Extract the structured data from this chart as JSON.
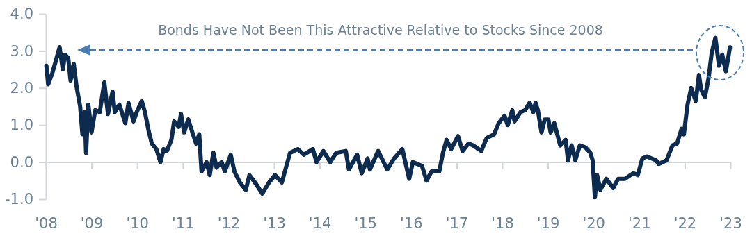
{
  "chart_data": {
    "type": "line",
    "annotations": [
      "Bonds Have Not Been This Attractive Relative to Stocks Since 2008"
    ],
    "x": [
      2008.01,
      2008.05,
      2008.14,
      2008.21,
      2008.3,
      2008.37,
      2008.42,
      2008.49,
      2008.54,
      2008.61,
      2008.67,
      2008.75,
      2008.8,
      2008.85,
      2008.88,
      2008.93,
      2009.0,
      2009.08,
      2009.18,
      2009.28,
      2009.36,
      2009.46,
      2009.51,
      2009.61,
      2009.74,
      2009.81,
      2009.92,
      2009.99,
      2010.1,
      2010.17,
      2010.25,
      2010.32,
      2010.42,
      2010.51,
      2010.58,
      2010.65,
      2010.75,
      2010.81,
      2010.91,
      2010.96,
      2011.03,
      2011.12,
      2011.21,
      2011.29,
      2011.36,
      2011.41,
      2011.52,
      2011.59,
      2011.67,
      2011.74,
      2011.85,
      2011.92,
      2012.05,
      2012.13,
      2012.25,
      2012.38,
      2012.46,
      2012.61,
      2012.74,
      2012.89,
      2013.02,
      2013.17,
      2013.27,
      2013.35,
      2013.52,
      2013.65,
      2013.85,
      2013.93,
      2014.08,
      2014.23,
      2014.36,
      2014.57,
      2014.64,
      2014.82,
      2014.92,
      2015.05,
      2015.1,
      2015.28,
      2015.48,
      2015.63,
      2015.81,
      2015.96,
      2016.04,
      2016.24,
      2016.34,
      2016.45,
      2016.62,
      2016.7,
      2016.78,
      2016.88,
      2017.03,
      2017.13,
      2017.26,
      2017.36,
      2017.54,
      2017.66,
      2017.82,
      2017.92,
      2018.05,
      2018.12,
      2018.22,
      2018.27,
      2018.4,
      2018.5,
      2018.6,
      2018.68,
      2018.73,
      2018.78,
      2018.86,
      2018.93,
      2019.01,
      2019.06,
      2019.14,
      2019.27,
      2019.39,
      2019.44,
      2019.52,
      2019.6,
      2019.7,
      2019.82,
      2019.93,
      2019.98,
      2020.03,
      2020.08,
      2020.15,
      2020.28,
      2020.43,
      2020.54,
      2020.69,
      2020.87,
      2020.97,
      2021.07,
      2021.17,
      2021.37,
      2021.43,
      2021.6,
      2021.73,
      2021.83,
      2021.93,
      2021.98,
      2022.06,
      2022.14,
      2022.24,
      2022.31,
      2022.36,
      2022.44,
      2022.52,
      2022.59,
      2022.67,
      2022.75,
      2022.82,
      2022.9,
      2022.95,
      2022.99
    ],
    "series": [
      {
        "color": "#0d2b4e",
        "values": [
          2.6,
          2.1,
          2.4,
          2.7,
          3.1,
          2.5,
          2.9,
          2.8,
          2.2,
          2.65,
          2.05,
          1.5,
          0.75,
          1.35,
          0.25,
          1.55,
          0.8,
          1.4,
          1.35,
          2.15,
          1.3,
          1.9,
          1.35,
          1.55,
          1.05,
          1.6,
          1.1,
          1.35,
          1.65,
          1.35,
          0.85,
          0.5,
          0.35,
          0.0,
          0.35,
          0.3,
          0.6,
          1.1,
          0.95,
          1.3,
          0.8,
          1.15,
          0.8,
          0.5,
          0.75,
          -0.25,
          0.0,
          -0.35,
          0.25,
          -0.15,
          0.0,
          -0.25,
          0.2,
          -0.25,
          -0.55,
          -0.75,
          -0.35,
          -0.6,
          -0.85,
          -0.55,
          -0.35,
          -0.55,
          -0.1,
          0.25,
          0.35,
          0.2,
          0.35,
          0.0,
          0.3,
          0.0,
          0.25,
          0.3,
          -0.2,
          0.2,
          -0.3,
          0.1,
          -0.2,
          0.3,
          -0.2,
          0.1,
          0.35,
          -0.45,
          0.0,
          -0.1,
          -0.5,
          -0.25,
          -0.25,
          0.25,
          0.6,
          0.35,
          0.7,
          0.3,
          0.5,
          0.45,
          0.3,
          0.65,
          0.75,
          1.05,
          1.25,
          1.0,
          1.4,
          1.1,
          1.35,
          1.4,
          1.6,
          1.35,
          1.6,
          1.4,
          0.8,
          1.15,
          1.15,
          0.8,
          1.05,
          0.45,
          0.6,
          0.05,
          0.45,
          0.05,
          0.45,
          0.4,
          0.25,
          0.05,
          -0.95,
          -0.35,
          -0.75,
          -0.45,
          -0.7,
          -0.45,
          -0.45,
          -0.3,
          -0.35,
          0.1,
          0.15,
          0.05,
          -0.05,
          0.05,
          0.45,
          0.5,
          0.9,
          0.75,
          1.55,
          2.0,
          1.65,
          2.35,
          1.95,
          1.75,
          2.25,
          2.95,
          3.35,
          2.6,
          2.9,
          2.45,
          2.8,
          3.1
        ]
      }
    ],
    "xlim": [
      2008,
      2023
    ],
    "xticks": [
      {
        "value": 2008,
        "label": "'08"
      },
      {
        "value": 2009,
        "label": "'09"
      },
      {
        "value": 2010,
        "label": "'10"
      },
      {
        "value": 2011,
        "label": "'11"
      },
      {
        "value": 2012,
        "label": "'12"
      },
      {
        "value": 2013,
        "label": "'13"
      },
      {
        "value": 2014,
        "label": "'14"
      },
      {
        "value": 2015,
        "label": "'15"
      },
      {
        "value": 2016,
        "label": "'16"
      },
      {
        "value": 2017,
        "label": "'17"
      },
      {
        "value": 2018,
        "label": "'18"
      },
      {
        "value": 2019,
        "label": "'19"
      },
      {
        "value": 2020,
        "label": "'20"
      },
      {
        "value": 2021,
        "label": "'21"
      },
      {
        "value": 2022,
        "label": "'22"
      },
      {
        "value": 2023,
        "label": "'23"
      }
    ],
    "ylim": [
      -1,
      4
    ],
    "yticks": [
      {
        "value": -1,
        "label": "-1.0"
      },
      {
        "value": 0,
        "label": "0.0"
      },
      {
        "value": 1,
        "label": "1.0"
      },
      {
        "value": 2,
        "label": "2.0"
      },
      {
        "value": 3,
        "label": "3.0"
      },
      {
        "value": 4,
        "label": "4.0"
      }
    ],
    "marker": "none",
    "line_style": "solid"
  }
}
